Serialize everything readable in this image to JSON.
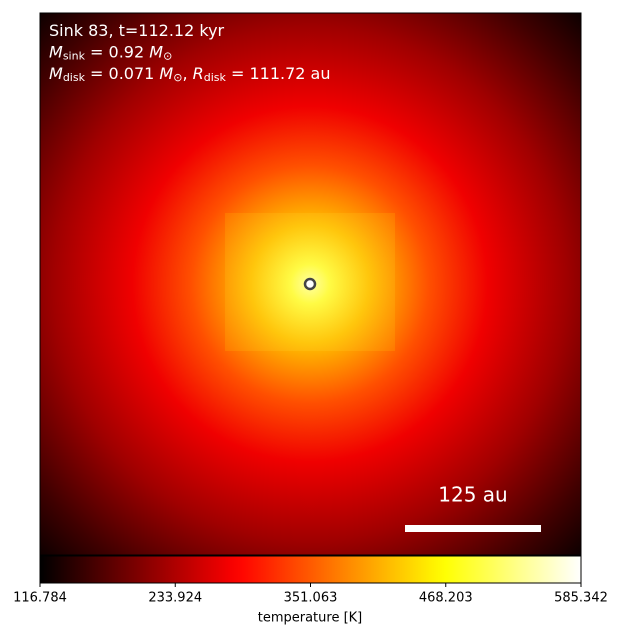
{
  "chart_data": {
    "type": "image",
    "annotations": [
      [
        {
          "text": "Sink 83, t=112.12 kyr"
        }
      ],
      [
        {
          "text": "M",
          "italic": true
        },
        {
          "text": "sink",
          "sub": true
        },
        {
          "text": " = 0.92 "
        },
        {
          "text": "M",
          "italic": true
        },
        {
          "text": "⊙",
          "sub": true
        }
      ],
      [
        {
          "text": "M",
          "italic": true
        },
        {
          "text": "disk",
          "sub": true
        },
        {
          "text": " = 0.071 "
        },
        {
          "text": "M",
          "italic": true
        },
        {
          "text": "⊙",
          "sub": true
        },
        {
          "text": ", "
        },
        {
          "text": "R",
          "italic": true
        },
        {
          "text": "disk",
          "sub": true
        },
        {
          "text": " = 111.72 au"
        }
      ]
    ],
    "scale_bar_label": "125 au",
    "colormap": "hot",
    "colorbar_label": "temperature [K]",
    "clim": [
      116.784,
      585.342
    ],
    "cticks": [
      116.784,
      233.924,
      351.063,
      468.203,
      585.342
    ]
  }
}
